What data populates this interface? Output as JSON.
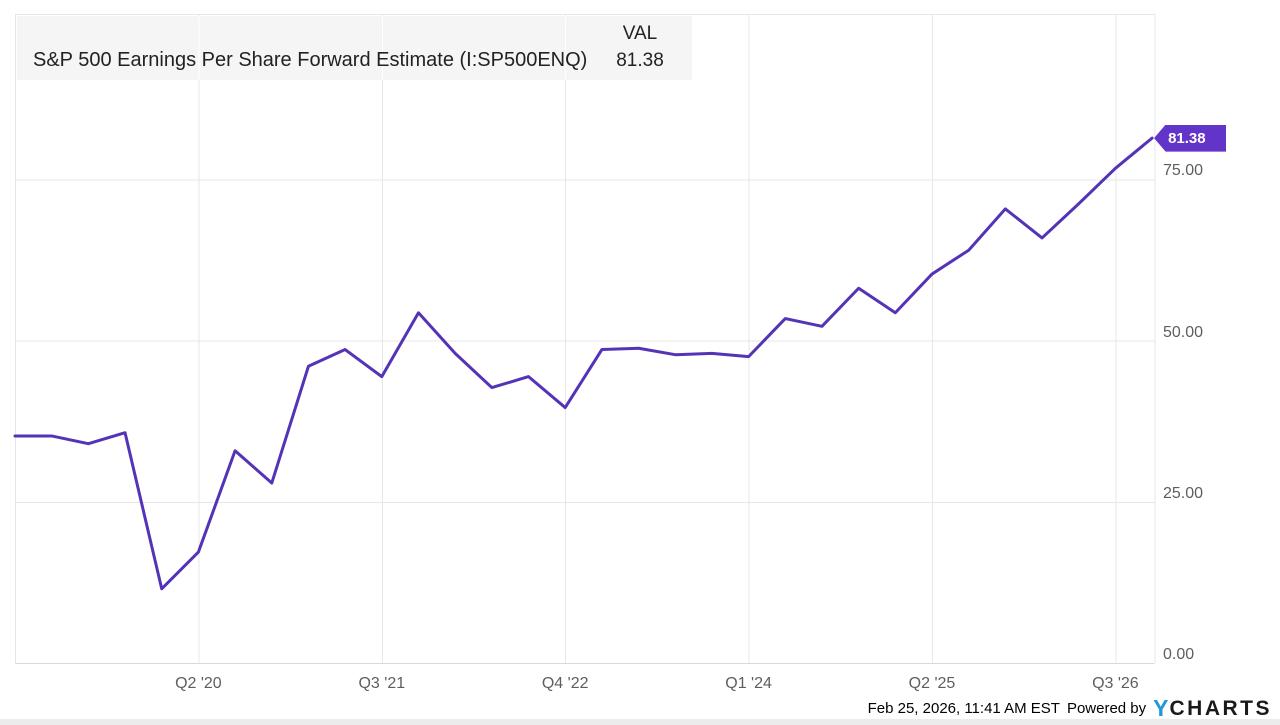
{
  "header": {
    "title": "S&P 500 Earnings Per Share Forward Estimate (I:SP500ENQ)",
    "val_label": "VAL",
    "val_value": "81.38"
  },
  "badge": {
    "label": "81.38"
  },
  "footer": {
    "timestamp": "Feb 25, 2026, 11:41 AM EST",
    "powered_by": "Powered by",
    "logo_y": "Y",
    "logo_charts": "CHARTS",
    "logo_y_color": "#2199d8"
  },
  "chart_data": {
    "type": "line",
    "title": "S&P 500 Earnings Per Share Forward Estimate",
    "series_id": "I:SP500ENQ",
    "categories": [
      "Q1 '19",
      "Q2 '19",
      "Q3 '19",
      "Q4 '19",
      "Q1 '20",
      "Q2 '20",
      "Q3 '20",
      "Q4 '20",
      "Q1 '21",
      "Q2 '21",
      "Q3 '21",
      "Q4 '21",
      "Q1 '22",
      "Q2 '22",
      "Q3 '22",
      "Q4 '22",
      "Q1 '23",
      "Q2 '23",
      "Q3 '23",
      "Q4 '23",
      "Q1 '24",
      "Q2 '24",
      "Q3 '24",
      "Q4 '24",
      "Q1 '25",
      "Q2 '25",
      "Q3 '25",
      "Q4 '25",
      "Q1 '26",
      "Q2 '26",
      "Q3 '26",
      "Q4 '26"
    ],
    "values": [
      35.2,
      35.2,
      34.0,
      35.7,
      11.5,
      17.2,
      32.9,
      27.9,
      46.0,
      48.6,
      44.4,
      54.3,
      48.0,
      42.7,
      44.4,
      39.6,
      48.6,
      48.8,
      47.8,
      48.0,
      47.5,
      53.4,
      52.2,
      58.1,
      54.3,
      60.3,
      64.0,
      70.4,
      65.9,
      71.2,
      76.7,
      81.38
    ],
    "last_value": 81.38,
    "x_tick_indices": [
      5,
      10,
      15,
      20,
      25,
      30
    ],
    "x_tick_labels": [
      "Q2 '20",
      "Q3 '21",
      "Q4 '22",
      "Q1 '24",
      "Q2 '25",
      "Q3 '26"
    ],
    "y_ticks": [
      {
        "value": 0,
        "label": "0.00"
      },
      {
        "value": 25,
        "label": "25.00"
      },
      {
        "value": 50,
        "label": "50.00"
      },
      {
        "value": 75,
        "label": "75.00"
      }
    ],
    "ylim": [
      0,
      100.6
    ],
    "grid": true,
    "legend_position": "none",
    "line_color": "#5433b7",
    "badge_color": "#6334c8",
    "grid_color": "#e7e7e7",
    "axis_color": "#d9d9d9",
    "header_box_color": "#f5f5f5"
  }
}
